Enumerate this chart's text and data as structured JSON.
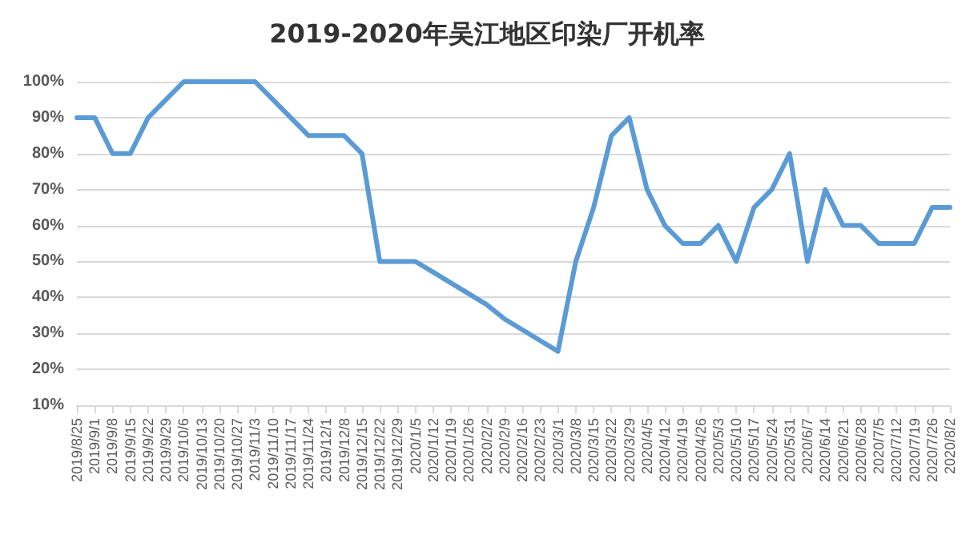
{
  "chart_data": {
    "type": "line",
    "title": "2019-2020年吴江地区印染厂开机率",
    "categories": [
      "2019/8/25",
      "2019/9/1",
      "2019/9/8",
      "2019/9/15",
      "2019/9/22",
      "2019/9/29",
      "2019/10/6",
      "2019/10/13",
      "2019/10/20",
      "2019/10/27",
      "2019/11/3",
      "2019/11/10",
      "2019/11/17",
      "2019/11/24",
      "2019/12/1",
      "2019/12/8",
      "2019/12/15",
      "2019/12/22",
      "2019/12/29",
      "2020/1/5",
      "2020/1/12",
      "2020/1/19",
      "2020/1/26",
      "2020/2/2",
      "2020/2/9",
      "2020/2/16",
      "2020/2/23",
      "2020/3/1",
      "2020/3/8",
      "2020/3/15",
      "2020/3/22",
      "2020/3/29",
      "2020/4/5",
      "2020/4/12",
      "2020/4/19",
      "2020/4/26",
      "2020/5/3",
      "2020/5/10",
      "2020/5/17",
      "2020/5/24",
      "2020/5/31",
      "2020/6/7",
      "2020/6/14",
      "2020/6/21",
      "2020/6/28",
      "2020/7/5",
      "2020/7/12",
      "2020/7/19",
      "2020/7/26",
      "2020/8/2"
    ],
    "series": [
      {
        "color": "#5b9bd5",
        "values": [
          90,
          90,
          80,
          80,
          90,
          95,
          100,
          100,
          100,
          100,
          100,
          95,
          90,
          85,
          85,
          85,
          80,
          50,
          50,
          50,
          47,
          44,
          41,
          38,
          34,
          31,
          28,
          25,
          50,
          65,
          85,
          90,
          70,
          60,
          55,
          55,
          60,
          50,
          65,
          70,
          80,
          50,
          70,
          60,
          60,
          55,
          55,
          55,
          65,
          65
        ]
      }
    ],
    "ylim": [
      10,
      100
    ],
    "yticks": [
      {
        "value": 10,
        "label": "10%"
      },
      {
        "value": 20,
        "label": "20%"
      },
      {
        "value": 30,
        "label": "30%"
      },
      {
        "value": 40,
        "label": "40%"
      },
      {
        "value": 50,
        "label": "50%"
      },
      {
        "value": 60,
        "label": "60%"
      },
      {
        "value": 70,
        "label": "70%"
      },
      {
        "value": 80,
        "label": "80%"
      },
      {
        "value": 90,
        "label": "90%"
      },
      {
        "value": 100,
        "label": "100%"
      }
    ],
    "grid": "y",
    "marker": "none",
    "line_style": "solid"
  }
}
